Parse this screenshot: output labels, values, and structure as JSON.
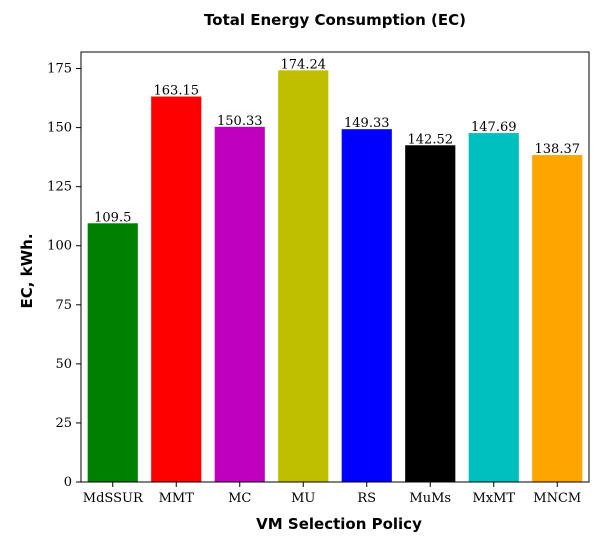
{
  "chart_data": {
    "type": "bar",
    "title": "Total Energy Consumption (EC)",
    "xlabel": "VM Selection Policy",
    "ylabel": "EC, kWh.",
    "categories": [
      "MdSSUR",
      "MMT",
      "MC",
      "MU",
      "RS",
      "MuMs",
      "MxMT",
      "MNCM"
    ],
    "values": [
      109.5,
      163.15,
      150.33,
      174.24,
      149.33,
      142.52,
      147.69,
      138.37
    ],
    "value_labels": [
      "109.5",
      "163.15",
      "150.33",
      "174.24",
      "149.33",
      "142.52",
      "147.69",
      "138.37"
    ],
    "colors": [
      "#008000",
      "#ff0000",
      "#bf00bf",
      "#bfbf00",
      "#0000ff",
      "#000000",
      "#00bfbf",
      "#ffa500"
    ],
    "ylim": [
      0,
      182
    ],
    "yticks": [
      0,
      25,
      50,
      75,
      100,
      125,
      150,
      175
    ],
    "grid": false,
    "legend": false
  }
}
